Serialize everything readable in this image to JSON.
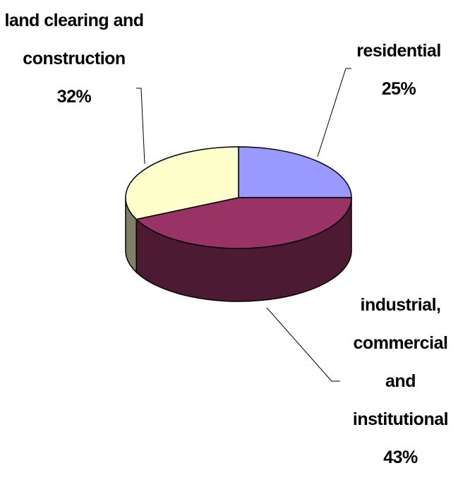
{
  "chart_data": {
    "type": "pie",
    "three_d": true,
    "categories": [
      "residential",
      "industrial, commercial and institutional",
      "land clearing and construction"
    ],
    "values": [
      25,
      43,
      32
    ],
    "value_labels": [
      "25%",
      "43%",
      "32%"
    ],
    "colors": [
      "#9999ff",
      "#993366",
      "#ffffcc"
    ]
  }
}
